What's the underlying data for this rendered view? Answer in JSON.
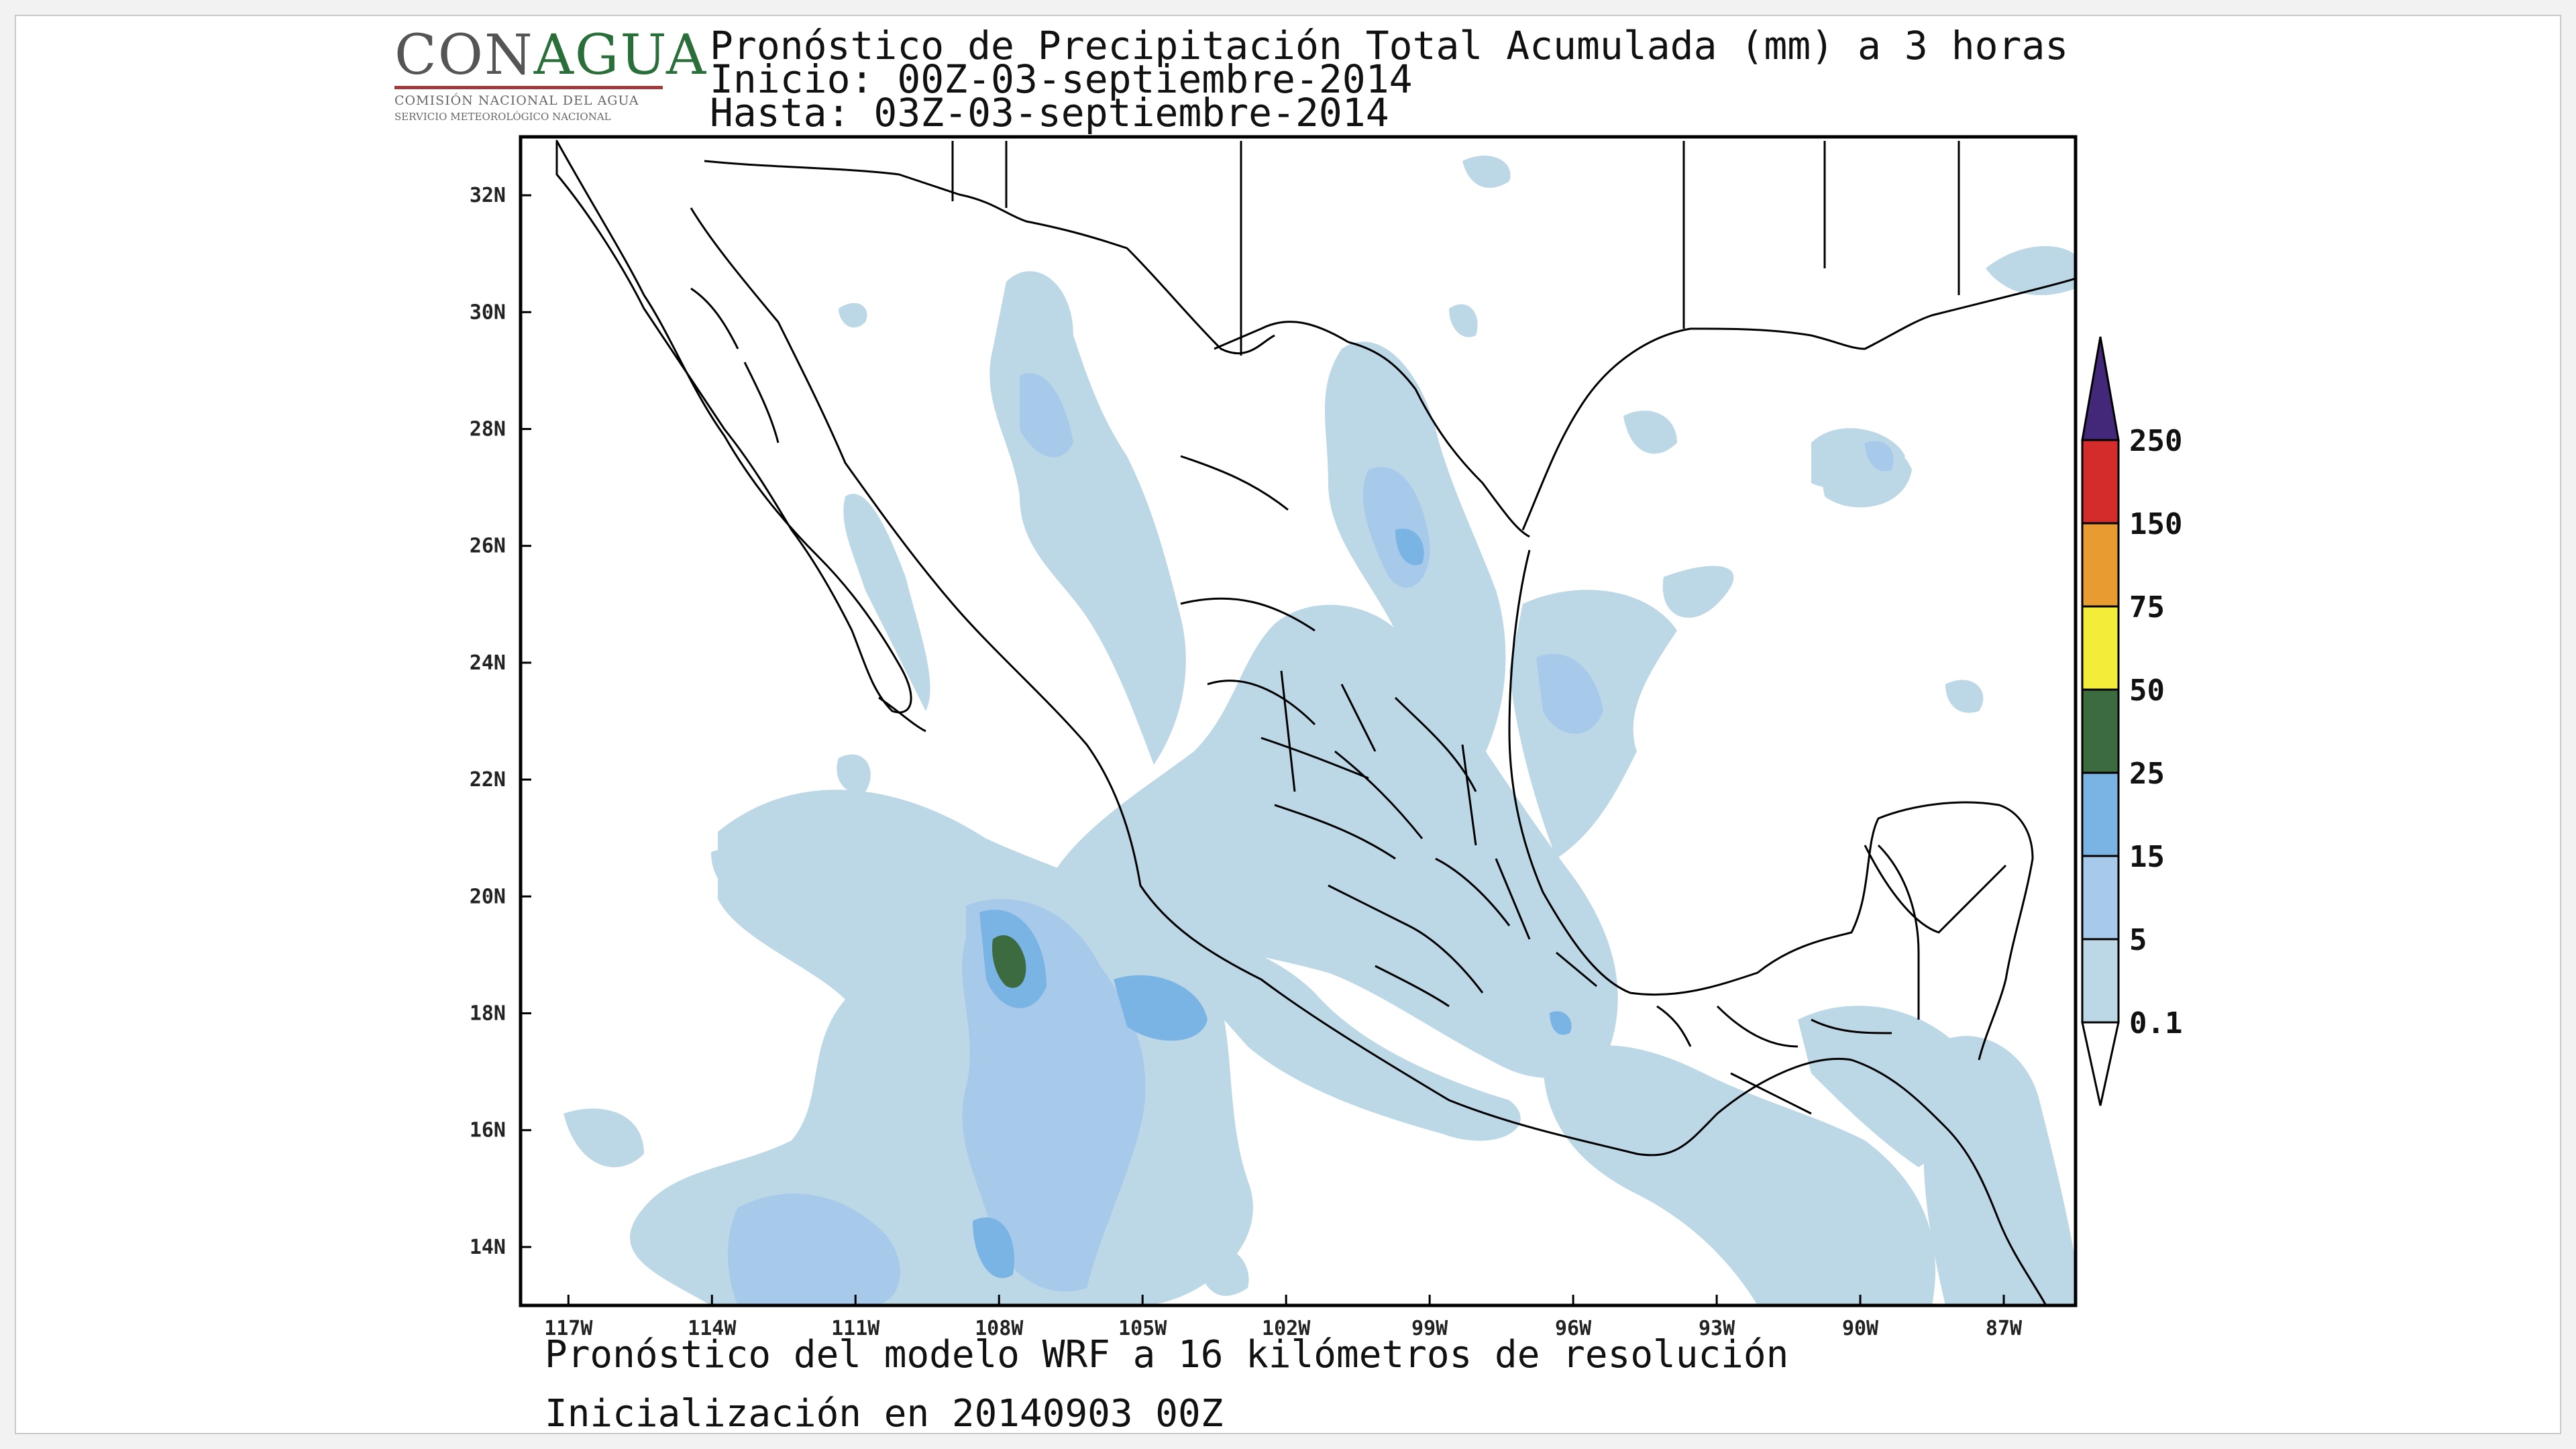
{
  "logo": {
    "name": "CONAGUA",
    "subtitle": "COMISIÓN NACIONAL DEL AGUA",
    "service": "SERVICIO METEOROLÓGICO NACIONAL"
  },
  "header": {
    "title": "Pronóstico de Precipitación Total Acumulada (mm) a 3 horas",
    "start": "Inicio: 00Z-03-septiembre-2014",
    "end": "Hasta: 03Z-03-septiembre-2014"
  },
  "map": {
    "lon_range": [
      -118,
      -85.5
    ],
    "lat_range": [
      13,
      33
    ],
    "lat_ticks": [
      "32N",
      "30N",
      "28N",
      "26N",
      "24N",
      "22N",
      "20N",
      "18N",
      "16N",
      "14N"
    ],
    "lon_ticks": [
      "117W",
      "114W",
      "111W",
      "108W",
      "105W",
      "102W",
      "99W",
      "96W",
      "93W",
      "90W",
      "87W"
    ]
  },
  "legend": {
    "unit": "mm",
    "levels": [
      "0.1",
      "5",
      "15",
      "25",
      "50",
      "75",
      "150",
      "250"
    ],
    "colors": [
      "#bcd7e6",
      "#a7c9ea",
      "#7ab4e4",
      "#3d6b40",
      "#f3ec39",
      "#e89b30",
      "#d42b2b",
      "#43287a"
    ],
    "top_arrow_color": "#43287a",
    "bottom_arrow_color": "#ffffff"
  },
  "footer": {
    "model": "Pronóstico del modelo WRF a 16 kilómetros de resolución",
    "init": "Inicialización en 20140903 00Z"
  }
}
